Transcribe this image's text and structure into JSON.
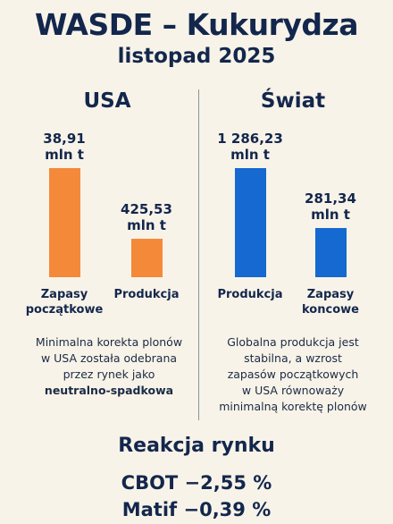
{
  "header": {
    "title": "WASDE – Kukurydza",
    "subtitle": "listopad 2025"
  },
  "colors": {
    "usa_bar": "#f5893a",
    "world_bar": "#1569d0",
    "text": "#13274d",
    "background": "#f8f3e8"
  },
  "chart_data": [
    {
      "type": "bar",
      "title": "USA",
      "categories": [
        "Zapasy początkowe",
        "Produkcja"
      ],
      "category_lines": [
        [
          "Zapasy",
          "początkowe"
        ],
        [
          "Produkcja"
        ]
      ],
      "values": [
        38.91,
        425.53
      ],
      "value_labels": [
        "38,91",
        "425,53"
      ],
      "unit": "mln t",
      "bar_height_fraction": [
        1.0,
        0.35
      ],
      "color": "#f5893a"
    },
    {
      "type": "bar",
      "title": "Świat",
      "categories": [
        "Produkcja",
        "Zapasy koncowe"
      ],
      "category_lines": [
        [
          "Produkcja"
        ],
        [
          "Zapasy",
          "koncowe"
        ]
      ],
      "values": [
        1286.23,
        281.34
      ],
      "value_labels": [
        "1 286,23",
        "281,34"
      ],
      "unit": "mln t",
      "bar_height_fraction": [
        1.0,
        0.45
      ],
      "color": "#1569d0"
    }
  ],
  "notes": {
    "usa": {
      "lines": [
        "Minimalna korekta plonów",
        "w USA została odebrana",
        "przez rynek jako"
      ],
      "bold": "neutralno-spadkowa"
    },
    "world": {
      "lines": [
        "Globalna produkcja jest",
        "stabilna, a wzrost",
        "zapasów początkowych",
        "w USA równoważy",
        "minimalną korektę plonów"
      ]
    }
  },
  "market": {
    "title": "Reakcja rynku",
    "cbot": "CBOT −2,55 %",
    "matif": "Matif −0,39 %"
  }
}
